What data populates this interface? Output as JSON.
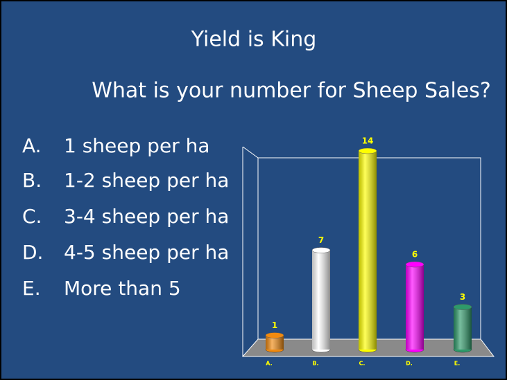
{
  "slide": {
    "title": "Yield is King",
    "subtitle": "What is your number for Sheep Sales?",
    "options": [
      {
        "letter": "A.",
        "text": "1 sheep per ha"
      },
      {
        "letter": "B.",
        "text": "1-2 sheep per ha"
      },
      {
        "letter": "C.",
        "text": "3-4 sheep per ha"
      },
      {
        "letter": "D.",
        "text": "4-5 sheep per ha"
      },
      {
        "letter": "E.",
        "text": "More than 5"
      }
    ]
  },
  "chart_data": {
    "type": "bar",
    "categories": [
      "A.",
      "B.",
      "C.",
      "D.",
      "E."
    ],
    "values": [
      1,
      7,
      14,
      6,
      3
    ],
    "colors": [
      "#f08a10",
      "#ffffff",
      "#ffff00",
      "#ff00ff",
      "#2e9a6a"
    ]
  }
}
